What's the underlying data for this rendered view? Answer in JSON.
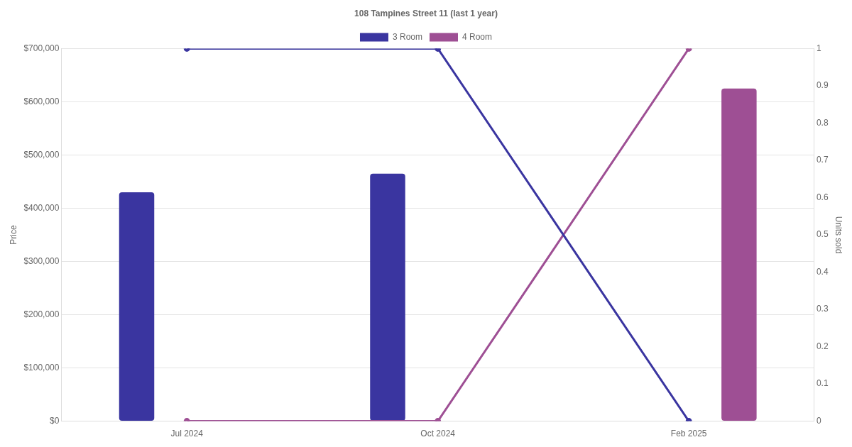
{
  "chart_data": {
    "type": "bar",
    "title": "108 Tampines Street 11 (last 1 year)",
    "ylabel": "Price",
    "y2label": "Units sold",
    "categories": [
      "Jul 2024",
      "Oct 2024",
      "Feb 2025"
    ],
    "series": [
      {
        "name": "3 Room",
        "color": "#3a35a0",
        "values": [
          430000,
          465000,
          null
        ]
      },
      {
        "name": "4 Room",
        "color": "#9e4f94",
        "values": [
          null,
          null,
          625000
        ]
      },
      {
        "type": "line",
        "axis": "y2",
        "color": "#3a35a0",
        "values": [
          1,
          1,
          0
        ]
      },
      {
        "type": "line",
        "axis": "y2",
        "color": "#9e4f94",
        "values": [
          0,
          0,
          1
        ]
      }
    ],
    "ylim": [
      0,
      700000
    ],
    "yticks": [
      {
        "value": 0,
        "label": "$0"
      },
      {
        "value": 100000,
        "label": "$100,000"
      },
      {
        "value": 200000,
        "label": "$200,000"
      },
      {
        "value": 300000,
        "label": "$300,000"
      },
      {
        "value": 400000,
        "label": "$400,000"
      },
      {
        "value": 500000,
        "label": "$500,000"
      },
      {
        "value": 600000,
        "label": "$600,000"
      },
      {
        "value": 700000,
        "label": "$700,000"
      }
    ],
    "y2lim": [
      0,
      1
    ],
    "y2ticks": [
      0,
      0.1,
      0.2,
      0.3,
      0.4,
      0.5,
      0.6,
      0.7,
      0.8,
      0.9,
      1
    ],
    "grid": "y",
    "legend": "top",
    "marker": "circle",
    "line_style": "solid"
  }
}
